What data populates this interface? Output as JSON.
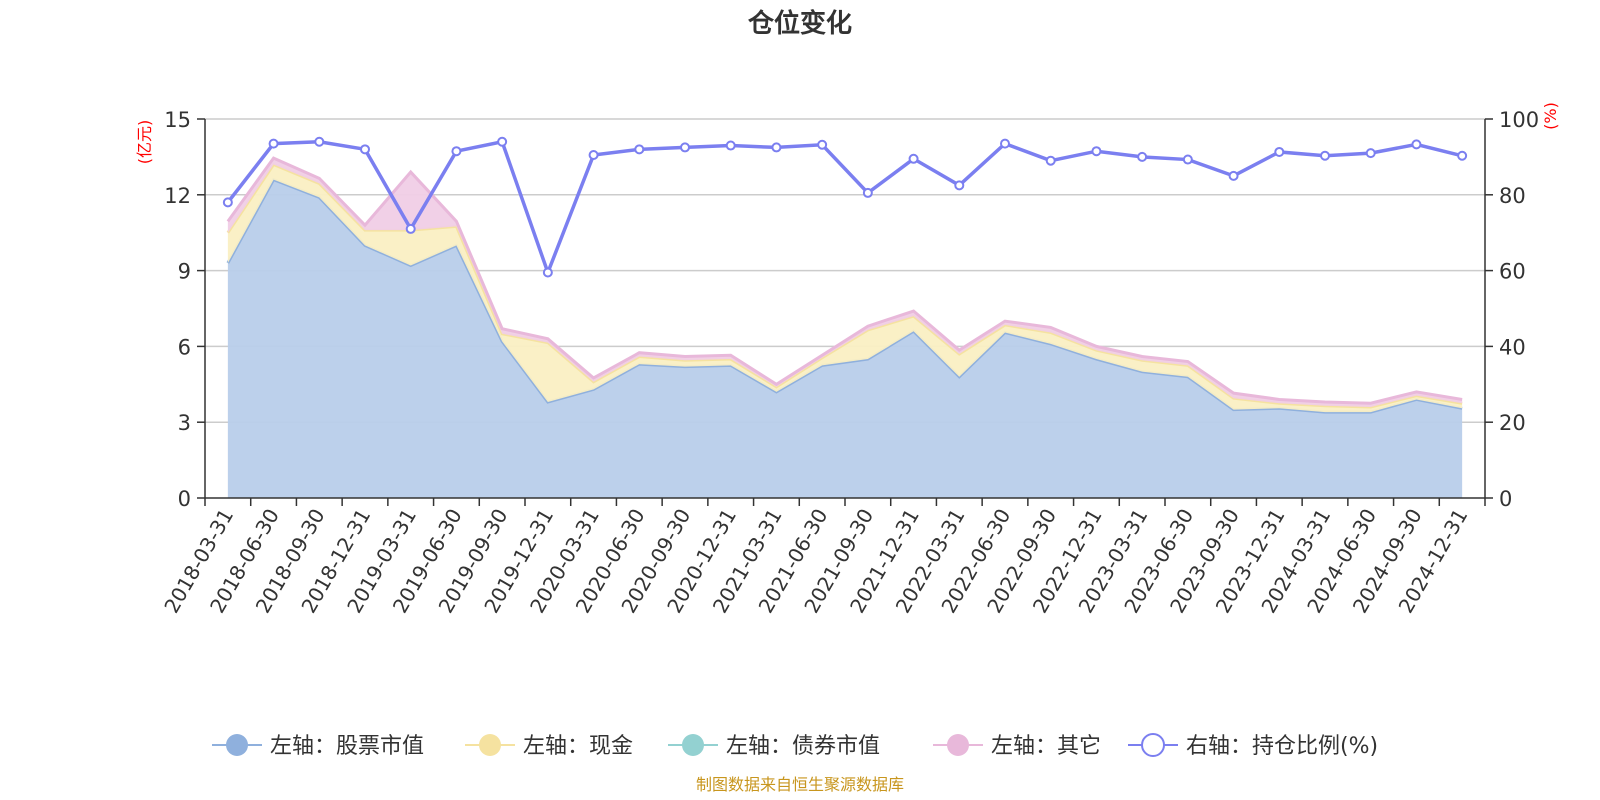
{
  "chart_data": {
    "type": "area",
    "title": "仓位变化",
    "left_axis_unit": "(亿元)",
    "right_axis_unit": "(%)",
    "ylim_left": [
      0,
      15
    ],
    "yticks_left": [
      "0",
      "3",
      "6",
      "9",
      "12",
      "15"
    ],
    "ylim_right": [
      0,
      100
    ],
    "yticks_right": [
      "0",
      "20",
      "40",
      "60",
      "80",
      "100"
    ],
    "categories": [
      "2018-03-31",
      "2018-06-30",
      "2018-09-30",
      "2018-12-31",
      "2019-03-31",
      "2019-06-30",
      "2019-09-30",
      "2019-12-31",
      "2020-03-31",
      "2020-06-30",
      "2020-09-30",
      "2020-12-31",
      "2021-03-31",
      "2021-06-30",
      "2021-09-30",
      "2021-12-31",
      "2022-03-31",
      "2022-06-30",
      "2022-09-30",
      "2022-12-31",
      "2023-03-31",
      "2023-06-30",
      "2023-09-30",
      "2023-12-31",
      "2024-03-31",
      "2024-06-30",
      "2024-09-30",
      "2024-12-31"
    ],
    "stacked_series": [
      {
        "name": "左轴：股票市值",
        "color": "#8fb0dd",
        "fill": "#b8cdea",
        "values": [
          9.3,
          12.6,
          11.9,
          10.0,
          9.2,
          10.0,
          6.2,
          3.8,
          4.3,
          5.3,
          5.2,
          5.25,
          4.2,
          5.25,
          5.5,
          6.6,
          4.8,
          6.55,
          6.1,
          5.5,
          5.0,
          4.8,
          3.5,
          3.55,
          3.4,
          3.4,
          3.9,
          3.55
        ]
      },
      {
        "name": "左轴：现金",
        "color": "#f5e2a0",
        "fill": "#faefc3",
        "values": [
          1.2,
          0.6,
          0.55,
          0.6,
          1.4,
          0.75,
          0.3,
          2.35,
          0.3,
          0.3,
          0.25,
          0.25,
          0.2,
          0.3,
          1.15,
          0.6,
          0.9,
          0.3,
          0.45,
          0.35,
          0.45,
          0.45,
          0.45,
          0.2,
          0.25,
          0.2,
          0.15,
          0.2
        ]
      },
      {
        "name": "左轴：债券市值",
        "color": "#93d1d1",
        "fill": "#c3e6e6",
        "values": [
          0,
          0,
          0,
          0,
          0,
          0,
          0,
          0,
          0,
          0,
          0,
          0,
          0,
          0,
          0,
          0,
          0,
          0,
          0,
          0,
          0,
          0,
          0,
          0,
          0,
          0,
          0,
          0
        ]
      },
      {
        "name": "左轴：其它",
        "color": "#e8b8da",
        "fill": "#f0cde6",
        "values": [
          0.45,
          0.25,
          0.2,
          0.2,
          2.3,
          0.2,
          0.2,
          0.15,
          0.15,
          0.15,
          0.15,
          0.15,
          0.1,
          0.1,
          0.15,
          0.2,
          0.15,
          0.15,
          0.2,
          0.15,
          0.15,
          0.15,
          0.2,
          0.15,
          0.15,
          0.15,
          0.15,
          0.15
        ]
      }
    ],
    "line_series": {
      "name": "右轴：持仓比例(%)",
      "color": "#7b7ff0",
      "values": [
        78,
        93.5,
        94,
        92,
        71,
        91.5,
        94,
        59.5,
        90.5,
        92,
        92.5,
        93,
        92.5,
        93.2,
        80.5,
        89.5,
        82.5,
        93.5,
        89,
        91.5,
        90,
        89.3,
        85,
        91.3,
        90.3,
        91,
        93.3,
        90.3
      ]
    },
    "legend": [
      "左轴：股票市值",
      "左轴：现金",
      "左轴：债券市值",
      "左轴：其它",
      "右轴：持仓比例(%)"
    ],
    "legend_position": "bottom",
    "grid": true
  },
  "footer": {
    "source": "制图数据来自恒生聚源数据库"
  }
}
